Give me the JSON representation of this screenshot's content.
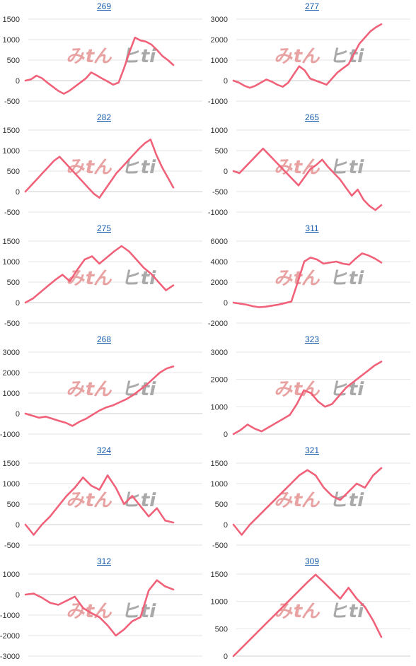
{
  "page": {
    "line_color": "#f0627a",
    "grid_color": "#e6e6e6",
    "zero_color": "#cccccc",
    "title_color": "#1a5dab",
    "watermark_left_color": "#e8a2a2",
    "watermark_right_color": "#a9a9a9"
  },
  "watermark": {
    "text_left": "みtん",
    "text_right": "ヒti"
  },
  "chart_data": [
    {
      "type": "line",
      "title": "269",
      "ylim": [
        -500,
        1500
      ],
      "yticks": [
        "1500",
        "1000",
        "500",
        "0",
        "-500"
      ],
      "values": [
        0,
        30,
        120,
        60,
        -50,
        -150,
        -250,
        -320,
        -250,
        -150,
        -50,
        50,
        200,
        130,
        50,
        -20,
        -100,
        -50,
        300,
        700,
        1050,
        980,
        950,
        880,
        750,
        600,
        500,
        380
      ]
    },
    {
      "type": "line",
      "title": "277",
      "ylim": [
        -1000,
        3000
      ],
      "yticks": [
        "3000",
        "2000",
        "1000",
        "0",
        "-1000"
      ],
      "values": [
        0,
        -100,
        -250,
        -350,
        -250,
        -100,
        50,
        -50,
        -200,
        -300,
        -100,
        300,
        700,
        500,
        100,
        0,
        -100,
        -200,
        100,
        400,
        600,
        800,
        1300,
        1800,
        2100,
        2400,
        2600,
        2750
      ]
    },
    {
      "type": "line",
      "title": "282",
      "ylim": [
        -500,
        1500
      ],
      "yticks": [
        "1500",
        "1000",
        "500",
        "0",
        "-500"
      ],
      "values": [
        0,
        150,
        300,
        450,
        600,
        750,
        850,
        700,
        550,
        400,
        250,
        100,
        -50,
        -150,
        50,
        250,
        450,
        600,
        750,
        900,
        1050,
        1180,
        1270,
        900,
        600,
        350,
        100
      ]
    },
    {
      "type": "line",
      "title": "265",
      "ylim": [
        -1000,
        1000
      ],
      "yticks": [
        "1000",
        "500",
        "0",
        "-500",
        "-1000"
      ],
      "values": [
        0,
        -50,
        100,
        250,
        400,
        550,
        400,
        250,
        100,
        -50,
        -200,
        -350,
        -150,
        50,
        150,
        280,
        100,
        -50,
        -200,
        -400,
        -600,
        -450,
        -700,
        -850,
        -950,
        -830
      ]
    },
    {
      "type": "line",
      "title": "275",
      "ylim": [
        -500,
        1500
      ],
      "yticks": [
        "1500",
        "1000",
        "500",
        "0",
        "-500"
      ],
      "values": [
        0,
        100,
        250,
        400,
        550,
        680,
        520,
        800,
        1050,
        1130,
        950,
        1100,
        1250,
        1380,
        1250,
        1050,
        850,
        700,
        500,
        300,
        420
      ]
    },
    {
      "type": "line",
      "title": "311",
      "ylim": [
        -2000,
        6000
      ],
      "yticks": [
        "6000",
        "4000",
        "2000",
        "0",
        "-2000"
      ],
      "values": [
        0,
        -100,
        -200,
        -350,
        -450,
        -400,
        -300,
        -200,
        -50,
        100,
        2000,
        4000,
        4400,
        4200,
        3800,
        3900,
        4000,
        3800,
        3700,
        4300,
        4800,
        4600,
        4300,
        3900
      ]
    },
    {
      "type": "line",
      "title": "268",
      "ylim": [
        -1000,
        3000
      ],
      "yticks": [
        "3000",
        "2000",
        "1000",
        "0",
        "-1000"
      ],
      "values": [
        0,
        -100,
        -200,
        -150,
        -250,
        -350,
        -450,
        -600,
        -400,
        -250,
        -50,
        150,
        300,
        400,
        550,
        700,
        900,
        1150,
        1400,
        1700,
        2000,
        2200,
        2300
      ]
    },
    {
      "type": "line",
      "title": "323",
      "ylim": [
        0,
        3000
      ],
      "yticks": [
        "3000",
        "2000",
        "1000",
        "0"
      ],
      "values": [
        0,
        150,
        350,
        200,
        100,
        250,
        400,
        550,
        700,
        1100,
        1600,
        1500,
        1200,
        1000,
        1100,
        1400,
        1700,
        1900,
        2100,
        2300,
        2500,
        2650
      ]
    },
    {
      "type": "line",
      "title": "324",
      "ylim": [
        -500,
        1500
      ],
      "yticks": [
        "1500",
        "1000",
        "500",
        "0",
        "-500"
      ],
      "values": [
        0,
        -250,
        0,
        200,
        450,
        700,
        900,
        1150,
        950,
        850,
        1200,
        900,
        500,
        700,
        450,
        200,
        400,
        100,
        50
      ]
    },
    {
      "type": "line",
      "title": "321",
      "ylim": [
        -500,
        1500
      ],
      "yticks": [
        "1500",
        "1000",
        "500",
        "0",
        "-500"
      ],
      "values": [
        0,
        -250,
        0,
        200,
        400,
        600,
        800,
        1000,
        1200,
        1330,
        1200,
        900,
        700,
        600,
        800,
        1000,
        900,
        1200,
        1380
      ]
    },
    {
      "type": "line",
      "title": "312",
      "ylim": [
        -3000,
        1000
      ],
      "yticks": [
        "1000",
        "0",
        "-1000",
        "-2000",
        "-3000"
      ],
      "values": [
        0,
        50,
        -150,
        -400,
        -500,
        -300,
        -100,
        -650,
        -900,
        -1100,
        -1500,
        -2000,
        -1700,
        -1300,
        -1100,
        200,
        700,
        400,
        250
      ]
    },
    {
      "type": "line",
      "title": "309",
      "ylim": [
        0,
        1500
      ],
      "yticks": [
        "1500",
        "1000",
        "500",
        "0"
      ],
      "values": [
        0,
        150,
        300,
        450,
        600,
        750,
        900,
        1050,
        1200,
        1350,
        1490,
        1350,
        1200,
        1050,
        1250,
        1050,
        900,
        650,
        350
      ]
    }
  ]
}
